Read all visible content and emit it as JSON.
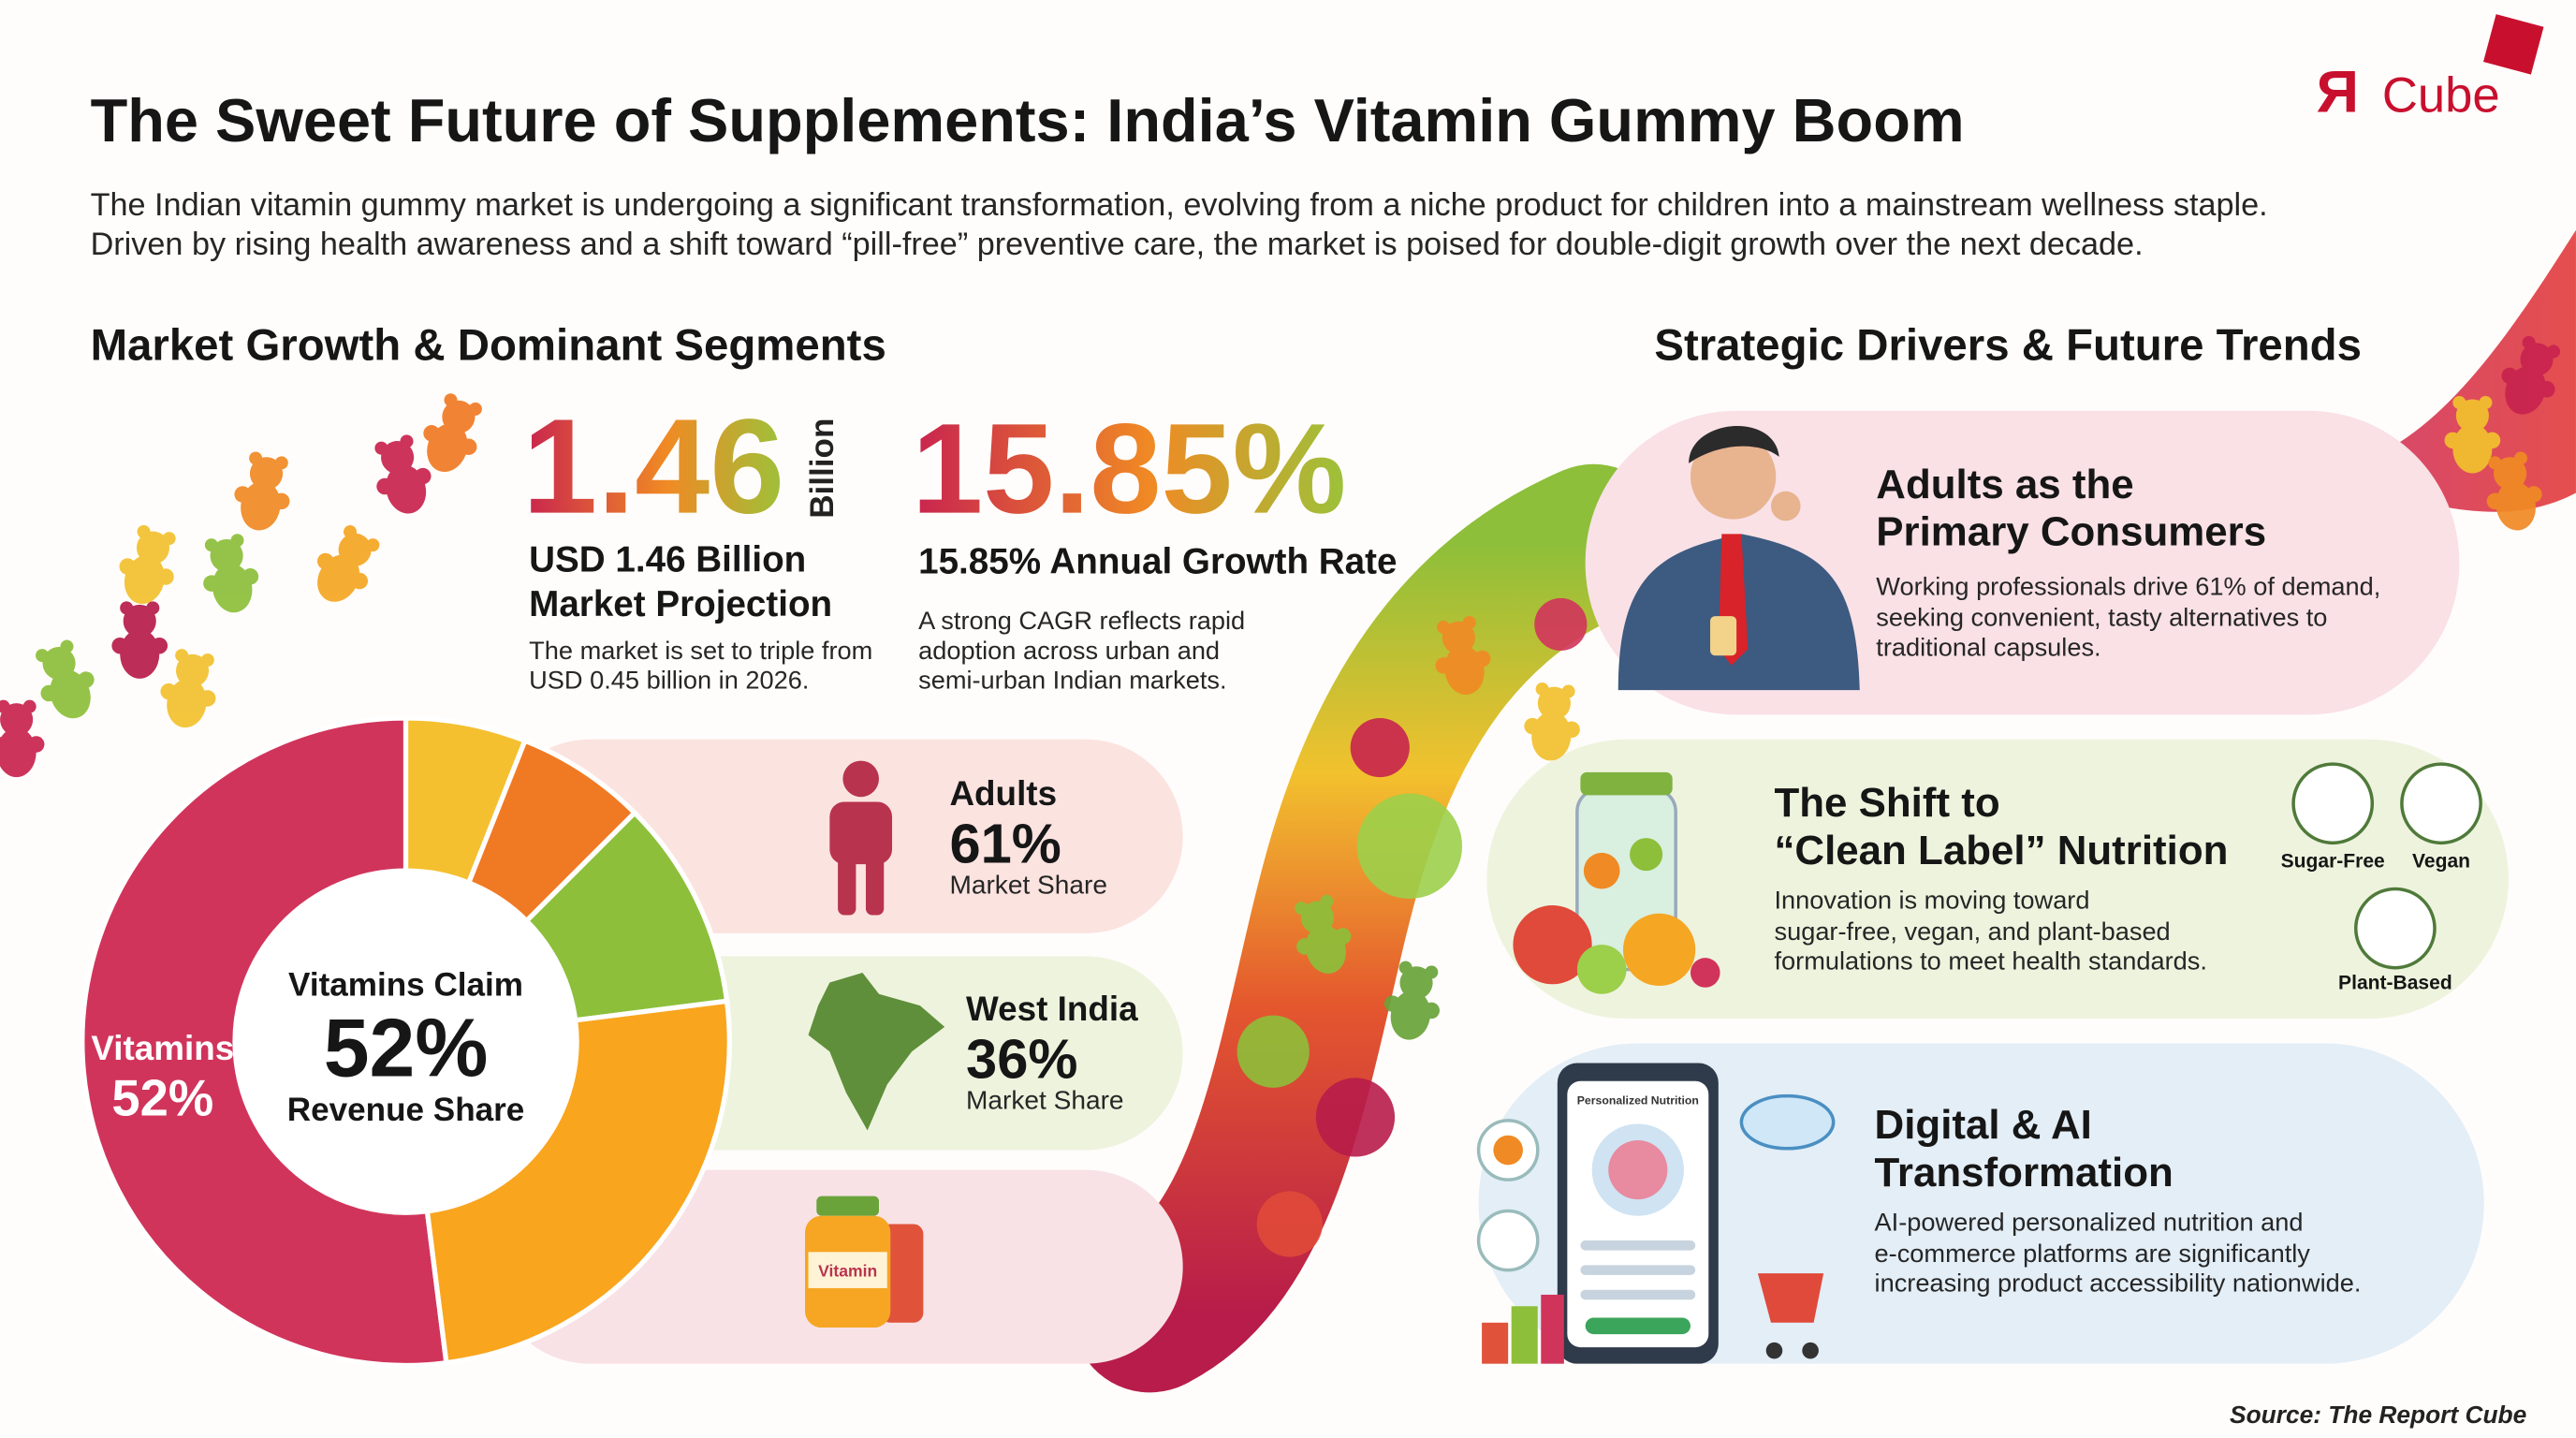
{
  "logo": {
    "mark": "Я",
    "text": "Cube"
  },
  "header": {
    "title": "The Sweet Future of Supplements: India’s Vitamin Gummy Boom",
    "subtitle": [
      "The Indian vitamin gummy market is undergoing a significant transformation, evolving from a niche product for children into a mainstream wellness staple.",
      "Driven by rising health awareness and a shift toward “pill-free” preventive care, the market is poised for double-digit growth over the next decade."
    ]
  },
  "left": {
    "heading": "Market Growth & Dominant Segments",
    "stats": [
      {
        "value": "1.46",
        "unit": "Billion",
        "title": [
          "USD 1.46 Billion",
          "Market Projection"
        ],
        "text": [
          "The market is set to triple from",
          "USD 0.45 billion in 2026."
        ]
      },
      {
        "value": "15.85%",
        "title": [
          "15.85% Annual Growth Rate"
        ],
        "text": [
          "A strong CAGR reflects rapid",
          "adoption across urban and",
          "semi-urban Indian markets."
        ]
      }
    ],
    "segments": [
      {
        "label": "Adults",
        "value": "61%",
        "caption": "Market Share"
      },
      {
        "label": "West India",
        "value": "36%",
        "caption": "Market Share"
      },
      {
        "jar_label": "Vitamin"
      }
    ]
  },
  "chart_data": {
    "type": "pie",
    "center_title": "Vitamins Claim",
    "center_subtitle": "Revenue Share",
    "categories": [
      "Vitamins",
      null,
      null,
      null,
      null
    ],
    "values": [
      52,
      6,
      6.5,
      10.5,
      25
    ],
    "value_labels": [
      "52%",
      null,
      null,
      null,
      null
    ],
    "colors": [
      "#d1345b",
      "#f4c02f",
      "#f07a24",
      "#8dbf3a",
      "#f9a51e"
    ]
  },
  "right": {
    "heading": "Strategic Drivers & Future Trends",
    "cards": [
      {
        "title": [
          "Adults as the",
          "Primary Consumers"
        ],
        "text": [
          "Working professionals drive 61% of demand,",
          "seeking convenient, tasty alternatives to",
          "traditional capsules."
        ]
      },
      {
        "title": [
          "The Shift to",
          "“Clean Label” Nutrition"
        ],
        "text": [
          "Innovation is moving toward",
          "sugar-free, vegan, and plant-based",
          "formulations to meet health standards."
        ],
        "badges": [
          "Sugar-Free",
          "Vegan",
          "Plant-Based"
        ]
      },
      {
        "title": [
          "Digital & AI",
          "Transformation"
        ],
        "text": [
          "AI-powered personalized nutrition and",
          "e-commerce platforms are significantly",
          "increasing product accessibility nationwide."
        ],
        "screen_label": "Personalized Nutrition"
      }
    ]
  },
  "source": "Source: The Report Cube"
}
